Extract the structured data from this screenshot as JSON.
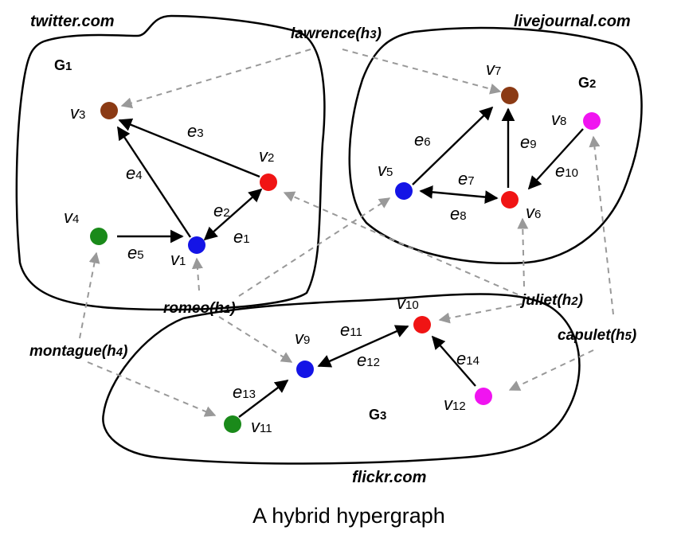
{
  "caption": "A hybrid hypergraph",
  "sites": {
    "twitter": "twitter.com",
    "livejournal": "livejournal.com",
    "flickr": "flickr.com"
  },
  "groups": {
    "g1": {
      "letter": "G",
      "sub": "1"
    },
    "g2": {
      "letter": "G",
      "sub": "2"
    },
    "g3": {
      "letter": "G",
      "sub": "3"
    }
  },
  "nodes": [
    {
      "id": "v1",
      "letter": "v",
      "sub": "1",
      "color": "#1414e6"
    },
    {
      "id": "v2",
      "letter": "v",
      "sub": "2",
      "color": "#f01414"
    },
    {
      "id": "v3",
      "letter": "v",
      "sub": "3",
      "color": "#8b3a14"
    },
    {
      "id": "v4",
      "letter": "v",
      "sub": "4",
      "color": "#1a8a1a"
    },
    {
      "id": "v5",
      "letter": "v",
      "sub": "5",
      "color": "#1414e6"
    },
    {
      "id": "v6",
      "letter": "v",
      "sub": "6",
      "color": "#f01414"
    },
    {
      "id": "v7",
      "letter": "v",
      "sub": "7",
      "color": "#8b3a14"
    },
    {
      "id": "v8",
      "letter": "v",
      "sub": "8",
      "color": "#f014f0"
    },
    {
      "id": "v9",
      "letter": "v",
      "sub": "9",
      "color": "#1414e6"
    },
    {
      "id": "v10",
      "letter": "v",
      "sub": "10",
      "color": "#f01414"
    },
    {
      "id": "v11",
      "letter": "v",
      "sub": "11",
      "color": "#1a8a1a"
    },
    {
      "id": "v12",
      "letter": "v",
      "sub": "12",
      "color": "#f014f0"
    }
  ],
  "edges": [
    {
      "id": "e1",
      "letter": "e",
      "sub": "1"
    },
    {
      "id": "e2",
      "letter": "e",
      "sub": "2"
    },
    {
      "id": "e3",
      "letter": "e",
      "sub": "3"
    },
    {
      "id": "e4",
      "letter": "e",
      "sub": "4"
    },
    {
      "id": "e5",
      "letter": "e",
      "sub": "5"
    },
    {
      "id": "e6",
      "letter": "e",
      "sub": "6"
    },
    {
      "id": "e7",
      "letter": "e",
      "sub": "7"
    },
    {
      "id": "e8",
      "letter": "e",
      "sub": "8"
    },
    {
      "id": "e9",
      "letter": "e",
      "sub": "9"
    },
    {
      "id": "e10",
      "letter": "e",
      "sub": "10"
    },
    {
      "id": "e11",
      "letter": "e",
      "sub": "11"
    },
    {
      "id": "e12",
      "letter": "e",
      "sub": "12"
    },
    {
      "id": "e13",
      "letter": "e",
      "sub": "13"
    },
    {
      "id": "e14",
      "letter": "e",
      "sub": "14"
    }
  ],
  "hyperedges": {
    "h1": {
      "name": "romeo(",
      "letter": "h",
      "sub": "1",
      "close": ")"
    },
    "h2": {
      "name": "juliet(",
      "letter": "h",
      "sub": "2",
      "close": ")"
    },
    "h3": {
      "name": "lawrence(",
      "letter": "h",
      "sub": "3",
      "close": ")"
    },
    "h4": {
      "name": "montague(",
      "letter": "h",
      "sub": "4",
      "close": ")"
    },
    "h5": {
      "name": "capulet(",
      "letter": "h",
      "sub": "5",
      "close": ")"
    }
  }
}
